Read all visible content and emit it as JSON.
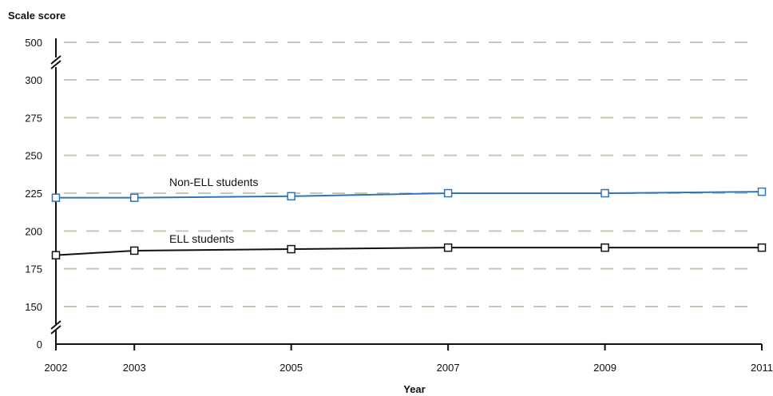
{
  "chart_data": {
    "type": "line",
    "ylabel": "Scale score",
    "xlabel": "Year",
    "x": [
      2002,
      2003,
      2005,
      2007,
      2009,
      2011
    ],
    "y_ticks": [
      0,
      150,
      175,
      200,
      225,
      250,
      275,
      300,
      500
    ],
    "y_axis_break": [
      [
        0,
        150
      ],
      [
        300,
        500
      ]
    ],
    "ylim": [
      0,
      500
    ],
    "grid": true,
    "series": [
      {
        "name": "Non-ELL students",
        "values": [
          222,
          222,
          223,
          225,
          225,
          226
        ],
        "color": "#2e75b6"
      },
      {
        "name": "ELL students",
        "values": [
          184,
          187,
          188,
          189,
          189,
          189
        ],
        "color": "#111111"
      }
    ]
  }
}
